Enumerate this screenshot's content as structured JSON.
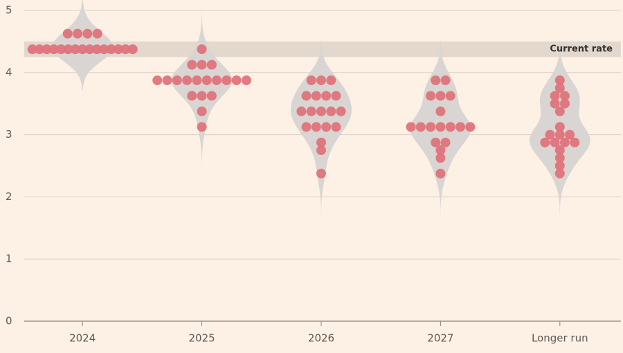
{
  "chart_data": {
    "type": "dot",
    "categories": [
      "2024",
      "2025",
      "2026",
      "2027",
      "Longer run"
    ],
    "values": [
      [
        4.625,
        4.625,
        4.625,
        4.625,
        4.375,
        4.375,
        4.375,
        4.375,
        4.375,
        4.375,
        4.375,
        4.375,
        4.375,
        4.375,
        4.375,
        4.375,
        4.375,
        4.375,
        4.375
      ],
      [
        4.375,
        4.125,
        4.125,
        4.125,
        3.875,
        3.875,
        3.875,
        3.875,
        3.875,
        3.875,
        3.875,
        3.875,
        3.875,
        3.875,
        3.625,
        3.625,
        3.625,
        3.375,
        3.125
      ],
      [
        3.875,
        3.875,
        3.875,
        3.625,
        3.625,
        3.625,
        3.625,
        3.375,
        3.375,
        3.375,
        3.375,
        3.375,
        3.125,
        3.125,
        3.125,
        3.125,
        2.875,
        2.75,
        2.375
      ],
      [
        3.875,
        3.875,
        3.625,
        3.625,
        3.625,
        3.375,
        3.125,
        3.125,
        3.125,
        3.125,
        3.125,
        3.125,
        3.125,
        2.875,
        2.875,
        2.75,
        2.625,
        2.375
      ],
      [
        3.875,
        3.75,
        3.625,
        3.625,
        3.5,
        3.5,
        3.375,
        3.125,
        3,
        3,
        3,
        2.875,
        2.875,
        2.875,
        2.875,
        2.75,
        2.625,
        2.5,
        2.375
      ]
    ],
    "color": "#e0737b",
    "violin_color": "#d9d5d2",
    "band": {
      "label": "Current rate",
      "range": [
        4.25,
        4.5
      ],
      "color": "#e2d8cd"
    },
    "ylim": [
      0,
      5
    ],
    "yticks": [
      0,
      1,
      2,
      3,
      4,
      5
    ],
    "grid": true
  }
}
